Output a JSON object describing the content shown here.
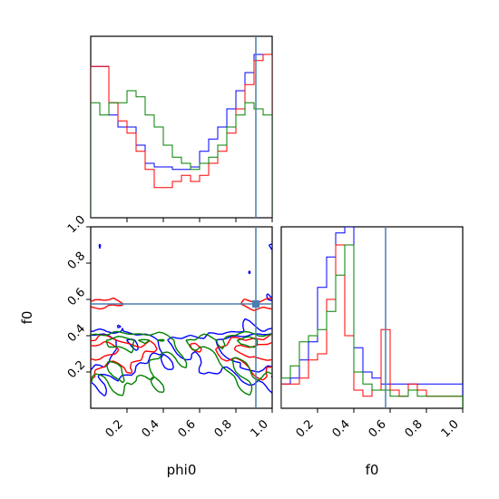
{
  "chart_data": {
    "type": "corner",
    "parameters": [
      "phi0",
      "f0"
    ],
    "xlabels": [
      "phi0",
      "f0"
    ],
    "ylabels": [
      "",
      "f0"
    ],
    "tick_labels": [
      "0.2",
      "0.4",
      "0.6",
      "0.8",
      "1.0"
    ],
    "tick_values": [
      0.2,
      0.4,
      0.6,
      0.8,
      1.0
    ],
    "range": [
      0.0,
      1.0
    ],
    "truth": {
      "phi0": 0.91,
      "f0": 0.575
    },
    "colors": {
      "truth": "#4a7fb0",
      "series": [
        "#0000ff",
        "#ff0000",
        "#008000"
      ]
    },
    "series": [
      {
        "color": "#0000ff",
        "phi0_hist": [
          1.25,
          1.25,
          0.85,
          0.75,
          0.75,
          0.6,
          0.45,
          0.42,
          0.42,
          0.4,
          0.4,
          0.42,
          0.55,
          0.65,
          0.75,
          0.9,
          1.05,
          1.2,
          1.35,
          1.35
        ],
        "f0_hist": [
          0.2,
          0.25,
          0.4,
          0.55,
          1.0,
          1.25,
          1.45,
          1.6,
          0.5,
          0.3,
          0.25,
          0.2,
          0.2,
          0.2,
          0.2,
          0.2,
          0.2,
          0.2,
          0.2,
          0.2
        ]
      },
      {
        "color": "#ff0000",
        "phi0_hist": [
          1.25,
          1.25,
          0.95,
          0.8,
          0.7,
          0.55,
          0.4,
          0.25,
          0.25,
          0.3,
          0.35,
          0.3,
          0.35,
          0.45,
          0.55,
          0.7,
          0.9,
          1.1,
          1.3,
          1.35
        ],
        "f0_hist": [
          0.2,
          0.2,
          0.25,
          0.4,
          0.45,
          0.9,
          1.35,
          0.6,
          0.15,
          0.1,
          0.15,
          0.65,
          0.15,
          0.1,
          0.2,
          0.15,
          0.1,
          0.1,
          0.1,
          0.1
        ]
      },
      {
        "color": "#008000",
        "phi0_hist": [
          0.95,
          0.85,
          0.95,
          0.95,
          1.05,
          1.0,
          0.85,
          0.75,
          0.6,
          0.5,
          0.45,
          0.4,
          0.45,
          0.5,
          0.6,
          0.75,
          0.85,
          0.95,
          0.9,
          0.85
        ],
        "f0_hist": [
          0.25,
          0.35,
          0.55,
          0.6,
          0.65,
          0.8,
          1.1,
          1.35,
          0.3,
          0.2,
          0.15,
          0.15,
          0.1,
          0.1,
          0.15,
          0.1,
          0.1,
          0.1,
          0.1,
          0.1
        ]
      }
    ],
    "contour_levels": [
      0.55,
      1.15
    ]
  }
}
